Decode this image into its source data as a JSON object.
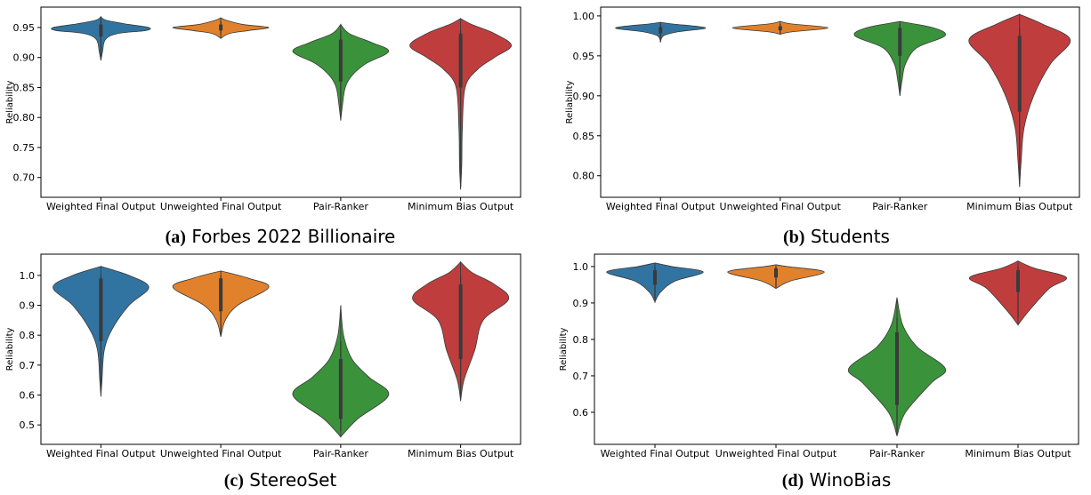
{
  "chart_data": [
    {
      "type": "violin",
      "caption_label": "(a)",
      "caption": "Forbes 2022 Billionaire",
      "ylabel": "Reliability",
      "categories": [
        "Weighted Final Output",
        "Unweighted Final Output",
        "Pair-Ranker",
        "Minimum Bias Output"
      ],
      "ylim": [
        0.667,
        0.984
      ],
      "yticks": [
        {
          "value": 0.7,
          "label": "0.70"
        },
        {
          "value": 0.75,
          "label": "0.75"
        },
        {
          "value": 0.8,
          "label": "0.80"
        },
        {
          "value": 0.85,
          "label": "0.85"
        },
        {
          "value": 0.9,
          "label": "0.90"
        },
        {
          "value": 0.95,
          "label": "0.95"
        }
      ],
      "violins": [
        {
          "color": "#3274a1",
          "y": [
            0.895,
            0.91,
            0.93,
            0.94,
            0.945,
            0.95,
            0.955,
            0.962,
            0.968
          ],
          "width": [
            0,
            0.03,
            0.08,
            0.3,
            0.8,
            0.85,
            0.5,
            0.1,
            0
          ],
          "whiskers": [
            0.9,
            0.965
          ],
          "box": [
            0.935,
            0.955
          ]
        },
        {
          "color": "#e1812c",
          "y": [
            0.932,
            0.94,
            0.945,
            0.95,
            0.955,
            0.962,
            0.966
          ],
          "width": [
            0,
            0.15,
            0.5,
            0.85,
            0.4,
            0.1,
            0
          ],
          "whiskers": [
            0.938,
            0.962
          ],
          "box": [
            0.945,
            0.955
          ]
        },
        {
          "color": "#3a923a",
          "y": [
            0.795,
            0.82,
            0.85,
            0.87,
            0.89,
            0.91,
            0.925,
            0.94,
            0.955
          ],
          "width": [
            0,
            0.03,
            0.08,
            0.2,
            0.45,
            0.85,
            0.55,
            0.15,
            0
          ],
          "whiskers": [
            0.81,
            0.945
          ],
          "box": [
            0.86,
            0.93
          ]
        },
        {
          "color": "#c03d3e",
          "y": [
            0.68,
            0.72,
            0.78,
            0.85,
            0.88,
            0.9,
            0.92,
            0.94,
            0.955,
            0.965
          ],
          "width": [
            0,
            0.02,
            0.03,
            0.08,
            0.3,
            0.6,
            0.9,
            0.6,
            0.2,
            0
          ],
          "whiskers": [
            0.685,
            0.945
          ],
          "box": [
            0.85,
            0.94
          ]
        }
      ]
    },
    {
      "type": "violin",
      "caption_label": "(b)",
      "caption": "Students",
      "ylabel": "Reliability",
      "categories": [
        "Weighted Final Output",
        "Unweighted Final Output",
        "Pair-Ranker",
        "Minimum Bias Output"
      ],
      "ylim": [
        0.773,
        1.011
      ],
      "yticks": [
        {
          "value": 0.8,
          "label": "0.80"
        },
        0.85,
        {
          "value": 0.9,
          "label": "0.90"
        },
        0.95,
        {
          "value": 1.0,
          "label": "1.00"
        }
      ],
      "violins": [
        {
          "color": "#3274a1",
          "y": [
            0.967,
            0.975,
            0.98,
            0.985,
            0.99,
            0.992
          ],
          "width": [
            0,
            0.05,
            0.3,
            0.8,
            0.2,
            0
          ],
          "whiskers": [
            0.97,
            0.99
          ],
          "box": [
            0.978,
            0.986
          ]
        },
        {
          "color": "#e1812c",
          "y": [
            0.977,
            0.98,
            0.985,
            0.99,
            0.993
          ],
          "width": [
            0,
            0.2,
            0.85,
            0.2,
            0
          ],
          "whiskers": [
            0.978,
            0.99
          ],
          "box": [
            0.982,
            0.987
          ]
        },
        {
          "color": "#3a923a",
          "y": [
            0.9,
            0.92,
            0.94,
            0.96,
            0.975,
            0.985,
            0.993
          ],
          "width": [
            0,
            0.04,
            0.1,
            0.3,
            0.8,
            0.6,
            0
          ],
          "whiskers": [
            0.905,
            0.99
          ],
          "box": [
            0.95,
            0.985
          ]
        },
        {
          "color": "#c03d3e",
          "y": [
            0.786,
            0.82,
            0.86,
            0.9,
            0.94,
            0.97,
            0.99,
            1.002
          ],
          "width": [
            0,
            0.03,
            0.08,
            0.25,
            0.55,
            0.9,
            0.4,
            0
          ],
          "whiskers": [
            0.79,
            0.985
          ],
          "box": [
            0.88,
            0.975
          ]
        }
      ]
    },
    {
      "type": "violin",
      "caption_label": "(c)",
      "caption": "StereoSet",
      "ylabel": "Reliability",
      "categories": [
        "Weighted Final Output",
        "Unweighted Final Output",
        "Pair-Ranker",
        "Minimum Bias Output"
      ],
      "ylim": [
        0.435,
        1.071
      ],
      "yticks": [
        0.5,
        0.6,
        0.7,
        0.8,
        0.9,
        {
          "value": 1.0,
          "label": "1.0"
        }
      ],
      "violins": [
        {
          "color": "#3274a1",
          "y": [
            0.595,
            0.65,
            0.75,
            0.82,
            0.9,
            0.96,
            1.0,
            1.03
          ],
          "width": [
            0,
            0.02,
            0.06,
            0.2,
            0.5,
            0.85,
            0.5,
            0
          ],
          "whiskers": [
            0.62,
            1.0
          ],
          "box": [
            0.78,
            0.99
          ]
        },
        {
          "color": "#e1812c",
          "y": [
            0.795,
            0.85,
            0.9,
            0.96,
            0.99,
            1.015
          ],
          "width": [
            0,
            0.08,
            0.3,
            0.85,
            0.5,
            0
          ],
          "whiskers": [
            0.8,
            1.0
          ],
          "box": [
            0.88,
            0.99
          ]
        },
        {
          "color": "#3a923a",
          "y": [
            0.46,
            0.52,
            0.6,
            0.66,
            0.72,
            0.8,
            0.9
          ],
          "width": [
            0,
            0.3,
            0.85,
            0.5,
            0.2,
            0.05,
            0
          ],
          "whiskers": [
            0.48,
            0.78
          ],
          "box": [
            0.52,
            0.72
          ]
        },
        {
          "color": "#c03d3e",
          "y": [
            0.58,
            0.65,
            0.75,
            0.85,
            0.92,
            0.97,
            1.01,
            1.045
          ],
          "width": [
            0,
            0.06,
            0.25,
            0.4,
            0.85,
            0.6,
            0.2,
            0
          ],
          "whiskers": [
            0.6,
            1.0
          ],
          "box": [
            0.72,
            0.97
          ]
        }
      ]
    },
    {
      "type": "violin",
      "caption_label": "(d)",
      "caption": "WinoBias",
      "ylabel": "Reliability",
      "categories": [
        "Weighted Final Output",
        "Unweighted Final Output",
        "Pair-Ranker",
        "Minimum Bias Output"
      ],
      "ylim": [
        0.512,
        1.034
      ],
      "yticks": [
        0.6,
        0.7,
        0.8,
        0.9,
        {
          "value": 1.0,
          "label": "1.0"
        }
      ],
      "violins": [
        {
          "color": "#3274a1",
          "y": [
            0.903,
            0.93,
            0.96,
            0.985,
            1.0,
            1.01
          ],
          "width": [
            0,
            0.1,
            0.35,
            0.85,
            0.3,
            0
          ],
          "whiskers": [
            0.91,
            1.0
          ],
          "box": [
            0.95,
            0.99
          ]
        },
        {
          "color": "#e1812c",
          "y": [
            0.94,
            0.96,
            0.985,
            1.0,
            1.005
          ],
          "width": [
            0,
            0.25,
            0.85,
            0.2,
            0
          ],
          "whiskers": [
            0.945,
            1.0
          ],
          "box": [
            0.97,
            0.995
          ]
        },
        {
          "color": "#3a923a",
          "y": [
            0.535,
            0.6,
            0.68,
            0.72,
            0.78,
            0.84,
            0.915
          ],
          "width": [
            0,
            0.15,
            0.6,
            0.85,
            0.35,
            0.1,
            0
          ],
          "whiskers": [
            0.54,
            0.86
          ],
          "box": [
            0.62,
            0.82
          ]
        },
        {
          "color": "#c03d3e",
          "y": [
            0.84,
            0.88,
            0.94,
            0.97,
            0.995,
            1.015
          ],
          "width": [
            0,
            0.2,
            0.55,
            0.85,
            0.3,
            0
          ],
          "whiskers": [
            0.86,
            1.0
          ],
          "box": [
            0.93,
            0.99
          ]
        }
      ]
    }
  ]
}
